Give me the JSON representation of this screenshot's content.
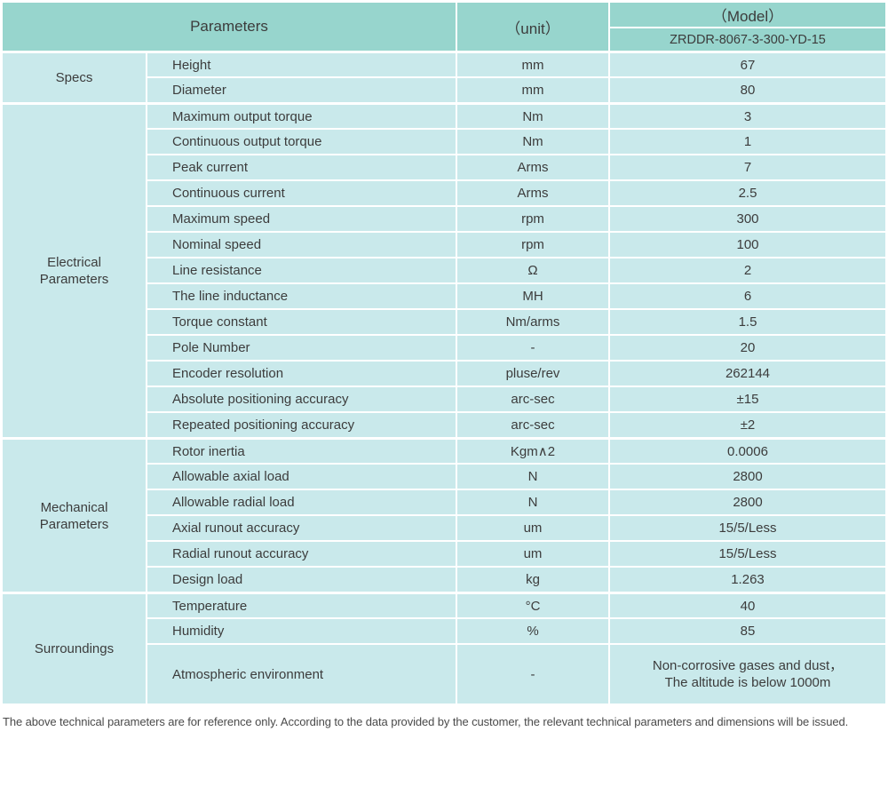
{
  "colors": {
    "header_bg": "#97d5cd",
    "cell_bg": "#c9e9eb",
    "border": "#ffffff",
    "text": "#3c3c3c"
  },
  "header": {
    "parameters_label": "Parameters",
    "unit_label": "（unit）",
    "model_label": "（Model）",
    "model_value": "ZRDDR-8067-3-300-YD-15"
  },
  "sections": [
    {
      "label": "Specs",
      "rows": [
        {
          "param": "Height",
          "unit": "mm",
          "value": "67"
        },
        {
          "param": "Diameter",
          "unit": "mm",
          "value": "80"
        }
      ]
    },
    {
      "label": "Electrical\nParameters",
      "rows": [
        {
          "param": "Maximum output torque",
          "unit": "Nm",
          "value": "3"
        },
        {
          "param": "Continuous output torque",
          "unit": "Nm",
          "value": "1"
        },
        {
          "param": "Peak current",
          "unit": "Arms",
          "value": "7"
        },
        {
          "param": "Continuous current",
          "unit": "Arms",
          "value": "2.5"
        },
        {
          "param": "Maximum speed",
          "unit": "rpm",
          "value": "300"
        },
        {
          "param": "Nominal speed",
          "unit": "rpm",
          "value": "100"
        },
        {
          "param": "Line resistance",
          "unit": "Ω",
          "value": "2"
        },
        {
          "param": "The line inductance",
          "unit": "MH",
          "value": "6"
        },
        {
          "param": "Torque constant",
          "unit": "Nm/arms",
          "value": "1.5"
        },
        {
          "param": "Pole Number",
          "unit": "-",
          "value": "20"
        },
        {
          "param": "Encoder resolution",
          "unit": "pluse/rev",
          "value": "262144"
        },
        {
          "param": "Absolute positioning accuracy",
          "unit": "arc-sec",
          "value": "±15"
        },
        {
          "param": "Repeated positioning accuracy",
          "unit": "arc-sec",
          "value": "±2"
        }
      ]
    },
    {
      "label": "Mechanical\nParameters",
      "rows": [
        {
          "param": "Rotor inertia",
          "unit": "Kgm∧2",
          "value": "0.0006"
        },
        {
          "param": "Allowable axial load",
          "unit": "N",
          "value": "2800"
        },
        {
          "param": "Allowable radial load",
          "unit": "N",
          "value": "2800"
        },
        {
          "param": "Axial runout accuracy",
          "unit": "um",
          "value": "15/5/Less"
        },
        {
          "param": "Radial runout accuracy",
          "unit": "um",
          "value": "15/5/Less"
        },
        {
          "param": "Design load",
          "unit": "kg",
          "value": "1.263"
        }
      ]
    },
    {
      "label": "Surroundings",
      "rows": [
        {
          "param": "Temperature",
          "unit": "°C",
          "value": "40"
        },
        {
          "param": "Humidity",
          "unit": "%",
          "value": "85"
        },
        {
          "param": "Atmospheric environment",
          "unit": "-",
          "value": "Non-corrosive gases and dust，\nThe altitude is below 1000m"
        }
      ]
    }
  ],
  "footer": {
    "note": "The above technical parameters are for reference only. According to the data provided by the customer, the relevant technical parameters and dimensions will be issued."
  }
}
